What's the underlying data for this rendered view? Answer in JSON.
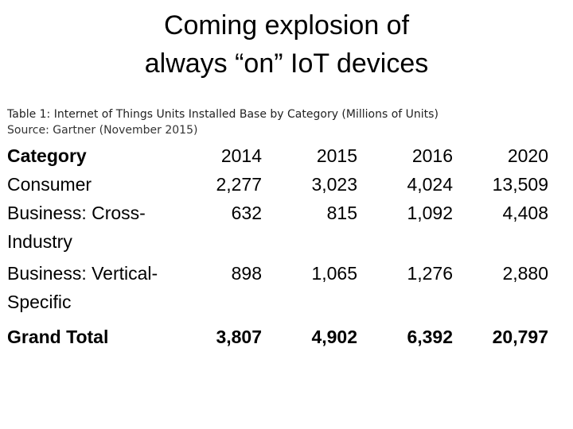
{
  "slide": {
    "title_line1": "Coming explosion of",
    "title_line2": "always “on” IoT devices"
  },
  "caption": {
    "table_caption": "Table 1: Internet of Things Units Installed Base by Category (Millions of Units)",
    "source": "Source: Gartner (November 2015)"
  },
  "table": {
    "headers": [
      "Category",
      "2014",
      "2015",
      "2016",
      "2020"
    ],
    "rows": [
      {
        "category": "Consumer",
        "values": [
          "2,277",
          "3,023",
          "4,024",
          "13,509"
        ]
      },
      {
        "category": "Business: Cross-Industry",
        "values": [
          "632",
          "815",
          "1,092",
          "4,408"
        ]
      },
      {
        "category": "Business: Vertical-Specific",
        "values": [
          "898",
          "1,065",
          "1,276",
          "2,880"
        ]
      }
    ],
    "total": {
      "category": "Grand Total",
      "values": [
        "3,807",
        "4,902",
        "6,392",
        "20,797"
      ]
    }
  }
}
